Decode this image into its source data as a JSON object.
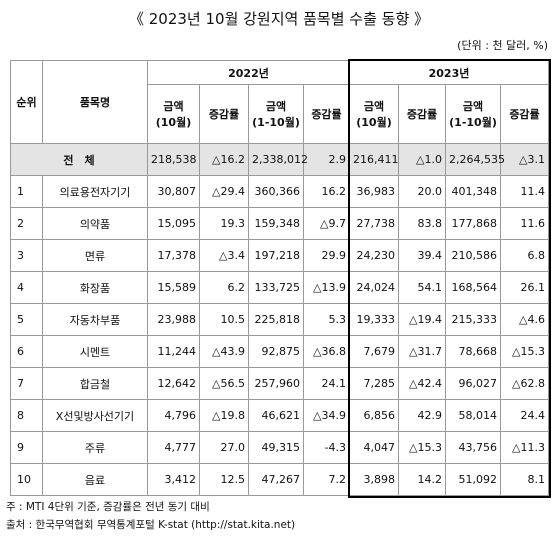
{
  "title": "《 2023년 10월 강원지역 품목별 수출 동향 》",
  "unit": "(단위 : 천 달러, %)",
  "table": {
    "header": {
      "rank": "순위",
      "item": "품목명",
      "years": [
        "2022년",
        "2023년"
      ],
      "sub": [
        [
          "금액",
          "(10월)"
        ],
        [
          "증감률"
        ],
        [
          "금액",
          "(1-10월)"
        ],
        [
          "증감률"
        ],
        [
          "금액",
          "(10월)"
        ],
        [
          "증감률"
        ],
        [
          "금액",
          "(1-10월)"
        ],
        [
          "증감률"
        ]
      ]
    },
    "total": {
      "label": "전　체",
      "values": [
        "218,538",
        "△16.2",
        "2,338,012",
        "2.9",
        "216,411",
        "△1.0",
        "2,264,535",
        "△3.1"
      ]
    },
    "rows": [
      [
        "1",
        "의료용전자기기",
        "30,807",
        "△29.4",
        "360,366",
        "16.2",
        "36,983",
        "20.0",
        "401,348",
        "11.4"
      ],
      [
        "2",
        "의약품",
        "15,095",
        "19.3",
        "159,348",
        "△9.7",
        "27,738",
        "83.8",
        "177,868",
        "11.6"
      ],
      [
        "3",
        "면류",
        "17,378",
        "△3.4",
        "197,218",
        "29.9",
        "24,230",
        "39.4",
        "210,586",
        "6.8"
      ],
      [
        "4",
        "화장품",
        "15,589",
        "6.2",
        "133,725",
        "△13.9",
        "24,024",
        "54.1",
        "168,564",
        "26.1"
      ],
      [
        "5",
        "자동차부품",
        "23,988",
        "10.5",
        "225,818",
        "5.3",
        "19,333",
        "△19.4",
        "215,333",
        "△4.6"
      ],
      [
        "6",
        "시멘트",
        "11,244",
        "△43.9",
        "92,875",
        "△36.8",
        "7,679",
        "△31.7",
        "78,668",
        "△15.3"
      ],
      [
        "7",
        "합금철",
        "12,642",
        "△56.5",
        "257,960",
        "24.1",
        "7,285",
        "△42.4",
        "96,027",
        "△62.8"
      ],
      [
        "8",
        "X선및방사선기기",
        "4,796",
        "△19.8",
        "46,621",
        "△34.9",
        "6,856",
        "42.9",
        "58,014",
        "24.4"
      ],
      [
        "9",
        "주류",
        "4,777",
        "27.0",
        "49,315",
        "-4.3",
        "4,047",
        "△15.3",
        "43,756",
        "△11.3"
      ],
      [
        "10",
        "음료",
        "3,412",
        "12.5",
        "47,267",
        "7.2",
        "3,898",
        "14.2",
        "51,092",
        "8.1"
      ]
    ]
  },
  "notes": [
    "주 : MTI 4단위 기준, 증감률은 전년 동기 대비",
    "출처 : 한국무역협회 무역통계포털 K-stat (http://stat.kita.net)"
  ]
}
